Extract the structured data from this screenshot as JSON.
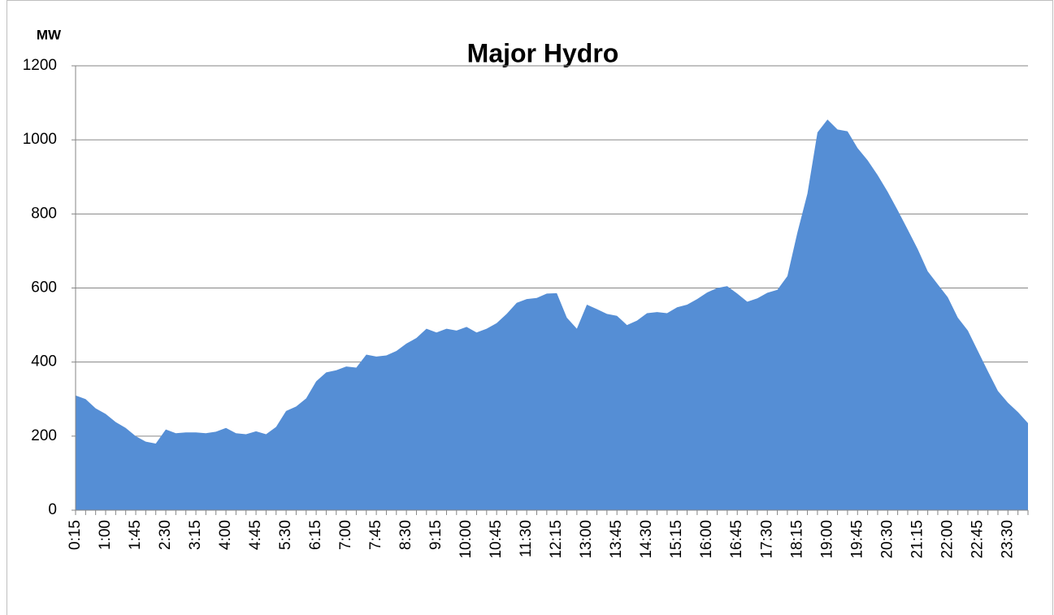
{
  "chart_data": {
    "type": "area",
    "title": "Major Hydro",
    "y_label": "MW",
    "categories": [
      "0:15",
      null,
      null,
      "1:00",
      null,
      null,
      "1:45",
      null,
      null,
      "2:30",
      null,
      null,
      "3:15",
      null,
      null,
      "4:00",
      null,
      null,
      "4:45",
      null,
      null,
      "5:30",
      null,
      null,
      "6:15",
      null,
      null,
      "7:00",
      null,
      null,
      "7:45",
      null,
      null,
      "8:30",
      null,
      null,
      "9:15",
      null,
      null,
      "10:00",
      null,
      null,
      "10:45",
      null,
      null,
      "11:30",
      null,
      null,
      "12:15",
      null,
      null,
      "13:00",
      null,
      null,
      "13:45",
      null,
      null,
      "14:30",
      null,
      null,
      "15:15",
      null,
      null,
      "16:00",
      null,
      null,
      "16:45",
      null,
      null,
      "17:30",
      null,
      null,
      "18:15",
      null,
      null,
      "19:00",
      null,
      null,
      "19:45",
      null,
      null,
      "20:30",
      null,
      null,
      "21:15",
      null,
      null,
      "22:00",
      null,
      null,
      "22:45",
      null,
      null,
      "23:30",
      null,
      null
    ],
    "values": [
      310,
      300,
      275,
      260,
      238,
      222,
      200,
      185,
      180,
      218,
      208,
      210,
      210,
      208,
      212,
      222,
      208,
      205,
      213,
      205,
      225,
      268,
      280,
      302,
      348,
      372,
      378,
      388,
      385,
      420,
      415,
      418,
      430,
      450,
      465,
      490,
      480,
      490,
      485,
      495,
      480,
      490,
      505,
      530,
      560,
      570,
      573,
      585,
      586,
      520,
      490,
      555,
      543,
      530,
      525,
      500,
      512,
      532,
      535,
      532,
      548,
      555,
      570,
      588,
      600,
      605,
      585,
      563,
      572,
      587,
      595,
      632,
      750,
      855,
      1020,
      1055,
      1028,
      1023,
      978,
      945,
      905,
      860,
      810,
      758,
      705,
      645,
      610,
      575,
      520,
      485,
      430,
      375,
      322,
      290,
      265,
      235
    ],
    "color": "#558ed5",
    "ylim": [
      0,
      1200
    ],
    "yticks": [
      0,
      200,
      400,
      600,
      800,
      1000,
      1200
    ],
    "grid": true
  }
}
